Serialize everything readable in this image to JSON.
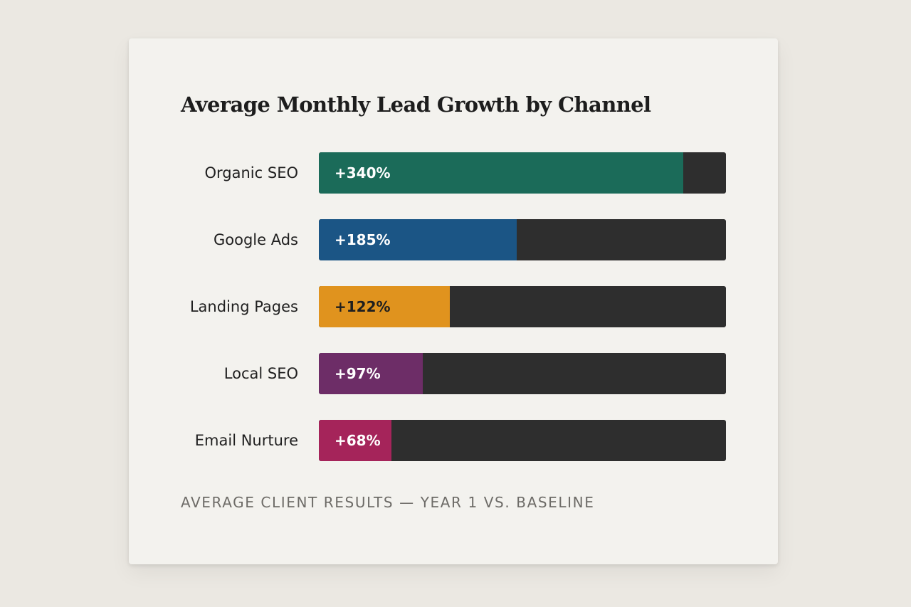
{
  "chart_data": {
    "type": "bar",
    "orientation": "horizontal",
    "title": "Average Monthly Lead Growth by Channel",
    "categories": [
      "Organic SEO",
      "Google Ads",
      "Landing Pages",
      "Local SEO",
      "Email Nurture"
    ],
    "values": [
      340,
      185,
      122,
      97,
      68
    ],
    "value_labels": [
      "+340%",
      "+185%",
      "+122%",
      "+97%",
      "+68%"
    ],
    "unit": "%",
    "xlim": [
      0,
      380
    ],
    "colors": [
      "#1b6b59",
      "#1b5585",
      "#e0931e",
      "#6d2d67",
      "#a5245a"
    ],
    "label_colors": [
      "#ffffff",
      "#ffffff",
      "#1f1f1f",
      "#ffffff",
      "#ffffff"
    ],
    "track_color": "#2e2e2e",
    "grid": false,
    "legend": "none",
    "footnote": "AVERAGE CLIENT RESULTS — YEAR 1 VS. BASELINE"
  }
}
